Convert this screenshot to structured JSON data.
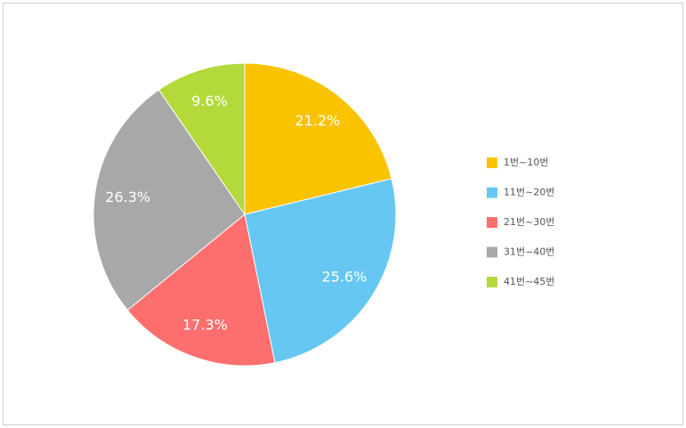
{
  "chart_data": {
    "type": "pie",
    "categories": [
      "1번~10번",
      "11번~20번",
      "21번~30번",
      "31번~40번",
      "41번~45번"
    ],
    "values": [
      21.2,
      25.6,
      17.3,
      26.3,
      9.6
    ],
    "value_labels": [
      "21.2%",
      "25.6%",
      "17.3%",
      "26.3%",
      "9.6%"
    ],
    "colors": [
      "#f9c300",
      "#66c7f2",
      "#fd6f6e",
      "#a8a8a8",
      "#b3d93b"
    ],
    "legend": "right"
  }
}
